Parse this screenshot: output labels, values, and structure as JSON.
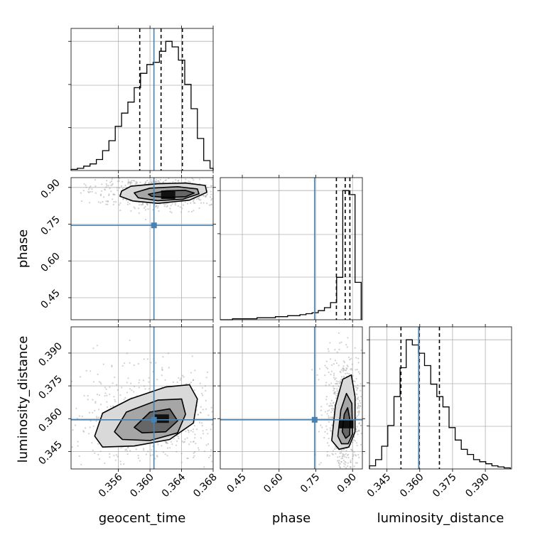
{
  "chart_data": {
    "type": "corner",
    "grid": true,
    "colors": {
      "truth": "#4682b4",
      "hist": "#000000",
      "grid": "#b0b0b0",
      "scatter": "#9a9a9a"
    },
    "parameters": [
      {
        "name": "geocent_time",
        "range": [
          0.35,
          0.368
        ],
        "ticks": [
          "0.356",
          "0.360",
          "0.364",
          "0.368"
        ],
        "tick_values": [
          0.356,
          0.36,
          0.364,
          0.368
        ],
        "truth": 0.3605
      },
      {
        "name": "phase",
        "range": [
          0.36,
          0.94
        ],
        "ticks": [
          "0.45",
          "0.60",
          "0.75",
          "0.90"
        ],
        "tick_values": [
          0.45,
          0.6,
          0.75,
          0.9
        ],
        "truth": 0.745
      },
      {
        "name": "luminosity_distance",
        "range": [
          0.337,
          0.402
        ],
        "ticks": [
          "0.345",
          "0.360",
          "0.375",
          "0.390"
        ],
        "tick_values": [
          0.345,
          0.36,
          0.375,
          0.39
        ],
        "truth": 0.3595
      }
    ],
    "marginals": [
      {
        "param": "geocent_time",
        "bin_edges": [
          0.35,
          0.3508,
          0.3516,
          0.3524,
          0.3532,
          0.354,
          0.3548,
          0.3556,
          0.3564,
          0.3572,
          0.358,
          0.3588,
          0.3596,
          0.3604,
          0.3612,
          0.362,
          0.3628,
          0.3636,
          0.3644,
          0.3652,
          0.366,
          0.3668,
          0.3676,
          0.3684
        ],
        "counts": [
          1,
          2,
          4,
          6,
          10,
          18,
          27,
          40,
          52,
          62,
          75,
          88,
          96,
          98,
          108,
          117,
          112,
          100,
          78,
          56,
          29,
          9,
          2
        ],
        "quantiles": [
          0.3587,
          0.3614,
          0.3641
        ]
      },
      {
        "param": "phase",
        "bin_edges": [
          0.36,
          0.385,
          0.41,
          0.435,
          0.46,
          0.485,
          0.51,
          0.535,
          0.56,
          0.585,
          0.61,
          0.635,
          0.66,
          0.685,
          0.71,
          0.735,
          0.76,
          0.785,
          0.81,
          0.835,
          0.86,
          0.885,
          0.91,
          0.935
        ],
        "counts": [
          0,
          0,
          1,
          1,
          1,
          1,
          2,
          2,
          2,
          3,
          3,
          4,
          4,
          5,
          6,
          7,
          9,
          12,
          17,
          42,
          128,
          124,
          37
        ],
        "quantiles": [
          0.834,
          0.87,
          0.889
        ]
      },
      {
        "param": "luminosity_distance",
        "bin_edges": [
          0.337,
          0.3398,
          0.3426,
          0.3454,
          0.3482,
          0.351,
          0.3538,
          0.3566,
          0.3594,
          0.3622,
          0.365,
          0.3678,
          0.3706,
          0.3734,
          0.3762,
          0.379,
          0.3818,
          0.3846,
          0.3874,
          0.3902,
          0.393,
          0.3958,
          0.3986,
          0.4014
        ],
        "counts": [
          3,
          9,
          22,
          42,
          70,
          98,
          125,
          120,
          112,
          100,
          82,
          70,
          60,
          40,
          28,
          19,
          14,
          9,
          7,
          5,
          3,
          2,
          1
        ],
        "quantiles": [
          0.3514,
          0.3597,
          0.369
        ]
      }
    ],
    "joint": [
      {
        "x_param": "geocent_time",
        "y_param": "phase",
        "density_center": [
          0.3623,
          0.87
        ],
        "contour_levels": [
          [
            [
              0.3564,
              0.885
            ],
            [
              0.3576,
              0.905
            ],
            [
              0.361,
              0.915
            ],
            [
              0.3645,
              0.918
            ],
            [
              0.367,
              0.908
            ],
            [
              0.3672,
              0.88
            ],
            [
              0.365,
              0.848
            ],
            [
              0.361,
              0.835
            ],
            [
              0.3578,
              0.845
            ],
            [
              0.3562,
              0.864
            ]
          ],
          [
            [
              0.358,
              0.878
            ],
            [
              0.36,
              0.897
            ],
            [
              0.3635,
              0.903
            ],
            [
              0.366,
              0.894
            ],
            [
              0.3662,
              0.874
            ],
            [
              0.3642,
              0.852
            ],
            [
              0.361,
              0.846
            ],
            [
              0.3585,
              0.858
            ]
          ],
          [
            [
              0.3598,
              0.872
            ],
            [
              0.362,
              0.886
            ],
            [
              0.3645,
              0.888
            ],
            [
              0.3656,
              0.877
            ],
            [
              0.3645,
              0.862
            ],
            [
              0.362,
              0.859
            ],
            [
              0.3602,
              0.864
            ]
          ]
        ]
      },
      {
        "x_param": "geocent_time",
        "y_param": "luminosity_distance",
        "density_center": [
          0.3615,
          0.36
        ],
        "contour_levels": [
          [
            [
              0.353,
              0.352
            ],
            [
              0.354,
              0.3625
            ],
            [
              0.3575,
              0.369
            ],
            [
              0.362,
              0.3745
            ],
            [
              0.365,
              0.3755
            ],
            [
              0.366,
              0.369
            ],
            [
              0.3655,
              0.358
            ],
            [
              0.3625,
              0.3505
            ],
            [
              0.358,
              0.3475
            ],
            [
              0.354,
              0.347
            ]
          ],
          [
            [
              0.3555,
              0.354
            ],
            [
              0.357,
              0.363
            ],
            [
              0.361,
              0.3685
            ],
            [
              0.364,
              0.369
            ],
            [
              0.3645,
              0.362
            ],
            [
              0.3635,
              0.3535
            ],
            [
              0.36,
              0.35
            ],
            [
              0.3565,
              0.3505
            ]
          ],
          [
            [
              0.358,
              0.356
            ],
            [
              0.36,
              0.363
            ],
            [
              0.3625,
              0.3645
            ],
            [
              0.3635,
              0.359
            ],
            [
              0.362,
              0.354
            ],
            [
              0.359,
              0.3535
            ]
          ]
        ]
      },
      {
        "x_param": "phase",
        "y_param": "luminosity_distance",
        "density_center": [
          0.875,
          0.3575
        ],
        "contour_levels": [
          [
            [
              0.815,
              0.35
            ],
            [
              0.83,
              0.366
            ],
            [
              0.86,
              0.378
            ],
            [
              0.895,
              0.38
            ],
            [
              0.91,
              0.37
            ],
            [
              0.91,
              0.354
            ],
            [
              0.885,
              0.347
            ],
            [
              0.845,
              0.346
            ]
          ],
          [
            [
              0.84,
              0.352
            ],
            [
              0.852,
              0.364
            ],
            [
              0.875,
              0.3715
            ],
            [
              0.897,
              0.367
            ],
            [
              0.9,
              0.353
            ],
            [
              0.882,
              0.3485
            ],
            [
              0.855,
              0.3485
            ]
          ],
          [
            [
              0.858,
              0.354
            ],
            [
              0.866,
              0.362
            ],
            [
              0.88,
              0.365
            ],
            [
              0.89,
              0.359
            ],
            [
              0.888,
              0.3525
            ],
            [
              0.872,
              0.351
            ]
          ]
        ]
      }
    ]
  }
}
